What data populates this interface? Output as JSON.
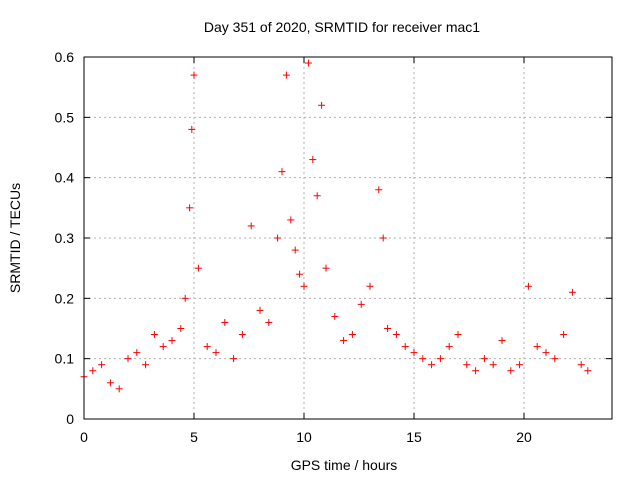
{
  "chart_data": {
    "type": "scatter",
    "title": "Day 351 of 2020, SRMTID for receiver mac1",
    "xlabel": "GPS time / hours",
    "ylabel": "SRMTID / TECUs",
    "xlim": [
      0,
      24
    ],
    "ylim": [
      0,
      0.6
    ],
    "xticks": [
      0,
      5,
      10,
      15,
      20
    ],
    "yticks": [
      0,
      0.1,
      0.2,
      0.3,
      0.4,
      0.5,
      0.6
    ],
    "xtick_labels": [
      "0",
      "5",
      "10",
      "15",
      "20"
    ],
    "ytick_labels": [
      "0",
      "0.1",
      "0.2",
      "0.3",
      "0.4",
      "0.5",
      "0.6"
    ],
    "grid": true,
    "marker": "plus",
    "color": "#ff0000",
    "series": [
      {
        "name": "SRMTID",
        "x": [
          0.0,
          0.4,
          0.8,
          1.2,
          1.6,
          2.0,
          2.4,
          2.8,
          3.2,
          3.6,
          4.0,
          4.4,
          4.6,
          4.8,
          4.9,
          5.0,
          5.2,
          5.6,
          6.0,
          6.4,
          6.8,
          7.2,
          7.6,
          8.0,
          8.4,
          8.8,
          9.0,
          9.2,
          9.4,
          9.6,
          9.8,
          10.0,
          10.2,
          10.4,
          10.6,
          10.8,
          11.0,
          11.4,
          11.8,
          12.2,
          12.6,
          13.0,
          13.4,
          13.6,
          13.8,
          14.2,
          14.6,
          15.0,
          15.4,
          15.8,
          16.2,
          16.6,
          17.0,
          17.4,
          17.8,
          18.2,
          18.6,
          19.0,
          19.4,
          19.8,
          20.2,
          20.6,
          21.0,
          21.4,
          21.8,
          22.2,
          22.6,
          22.9
        ],
        "y": [
          0.07,
          0.08,
          0.09,
          0.06,
          0.05,
          0.1,
          0.11,
          0.09,
          0.14,
          0.12,
          0.13,
          0.15,
          0.2,
          0.35,
          0.48,
          0.57,
          0.25,
          0.12,
          0.11,
          0.16,
          0.1,
          0.14,
          0.32,
          0.18,
          0.16,
          0.3,
          0.41,
          0.57,
          0.33,
          0.28,
          0.24,
          0.22,
          0.59,
          0.43,
          0.37,
          0.52,
          0.25,
          0.17,
          0.13,
          0.14,
          0.19,
          0.22,
          0.38,
          0.3,
          0.15,
          0.14,
          0.12,
          0.11,
          0.1,
          0.09,
          0.1,
          0.12,
          0.14,
          0.09,
          0.08,
          0.1,
          0.09,
          0.13,
          0.08,
          0.09,
          0.22,
          0.12,
          0.11,
          0.1,
          0.14,
          0.21,
          0.09,
          0.08
        ]
      }
    ]
  }
}
